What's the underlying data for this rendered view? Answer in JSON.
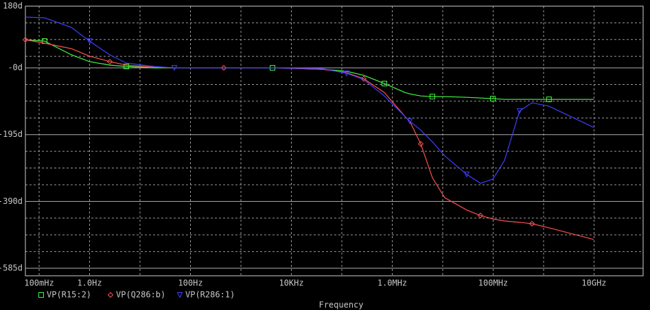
{
  "chart_data": {
    "type": "line",
    "x_label": "Frequency",
    "log_x": true,
    "grid": true,
    "legend": "bottom-left",
    "xlim": [
      0.0534,
      94000000000.0
    ],
    "ylim": [
      -607,
      180
    ],
    "xticks": [
      {
        "value": 0.1,
        "label": "100mHz"
      },
      {
        "value": 1,
        "label": "1.0Hz"
      },
      {
        "value": 100,
        "label": "100Hz"
      },
      {
        "value": 10000,
        "label": "10KHz"
      },
      {
        "value": 1000000,
        "label": "1.0MHz"
      },
      {
        "value": 100000000,
        "label": "100MHz"
      },
      {
        "value": 10000000000,
        "label": "10GHz"
      }
    ],
    "xgrid": [
      10,
      1000,
      100000,
      10000000,
      1000000000
    ],
    "yticks": [
      {
        "value": 180,
        "label": "180d"
      },
      {
        "value": 0,
        "label": "-0d"
      },
      {
        "value": -195,
        "label": "-195d"
      },
      {
        "value": -390,
        "label": "-390d"
      },
      {
        "value": -585,
        "label": "-585d"
      }
    ],
    "ygrid": [
      131.25,
      82.5,
      33.75,
      -48.75,
      -97.5,
      -146.25,
      -243.75,
      -292.5,
      -341.25,
      -438.75,
      -487.5,
      -536.25
    ],
    "x": [
      0.0534,
      0.128,
      0.436,
      1.0,
      2.52,
      5.35,
      18.7,
      47.9,
      457,
      4230,
      40300,
      124000,
      272000,
      698000,
      1790000,
      2220000,
      3670000,
      6250000,
      11000000,
      29900000,
      56000000,
      98400000,
      167000000,
      334000000,
      587000000,
      1280000000,
      9840000000
    ],
    "series": [
      {
        "name": "VP(R15:2)",
        "color": "#40ff40",
        "marker": "square",
        "values": [
          82,
          78,
          38,
          18,
          8,
          4,
          0,
          0,
          0,
          0,
          -4,
          -10,
          -22,
          -46,
          -72,
          -76,
          -82,
          -84,
          -84,
          -86,
          -88,
          -90,
          -92,
          -92,
          -92,
          -92,
          -92
        ]
      },
      {
        "name": "VP(Q286:b)",
        "color": "#ff5050",
        "marker": "diamond",
        "values": [
          82,
          72,
          56,
          34,
          18,
          8,
          2,
          0,
          0,
          0,
          -4,
          -14,
          -32,
          -72,
          -142,
          -156,
          -222,
          -321,
          -379,
          -415,
          -431,
          -441,
          -447,
          -451,
          -455,
          -467,
          -501
        ]
      },
      {
        "name": "VP(R286:1)",
        "color": "#4040ff",
        "marker": "triangle",
        "values": [
          148,
          146,
          118,
          78,
          38,
          14,
          4,
          0,
          0,
          0,
          -2,
          -16,
          -34,
          -82,
          -142,
          -156,
          -182,
          -216,
          -257,
          -311,
          -337,
          -325,
          -271,
          -126,
          -102,
          -112,
          -174
        ]
      }
    ]
  }
}
